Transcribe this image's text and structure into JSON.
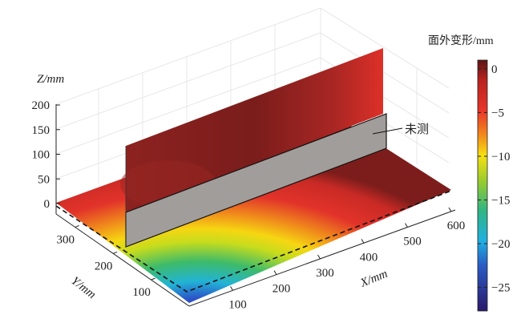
{
  "chart_data": {
    "type": "surface",
    "title": "",
    "xlabel": "X/mm",
    "ylabel": "Y/mm",
    "zlabel": "Z/mm",
    "x_ticks": [
      "100",
      "200",
      "300",
      "400",
      "500",
      "600"
    ],
    "y_ticks": [
      "100",
      "200",
      "300"
    ],
    "z_ticks": [
      "0",
      "50",
      "100",
      "150",
      "200"
    ],
    "xlim": [
      0,
      600
    ],
    "ylim": [
      0,
      350
    ],
    "zlim": [
      0,
      200
    ],
    "colorbar": {
      "label": "面外变形/mm",
      "ticks": [
        0,
        -5,
        -10,
        -15,
        -20,
        -25
      ],
      "tick_labels": [
        "0",
        "−5",
        "−10",
        "−15",
        "−20",
        "−25"
      ],
      "range": [
        -27.7,
        1
      ]
    },
    "annotation": "未测",
    "description_values": {
      "min_deformation_region": "front corner near X=0,Y=0 (about -27 mm)",
      "max_deformation_region": "far edge and vertical plate (about 0 mm)"
    },
    "grid": true
  }
}
